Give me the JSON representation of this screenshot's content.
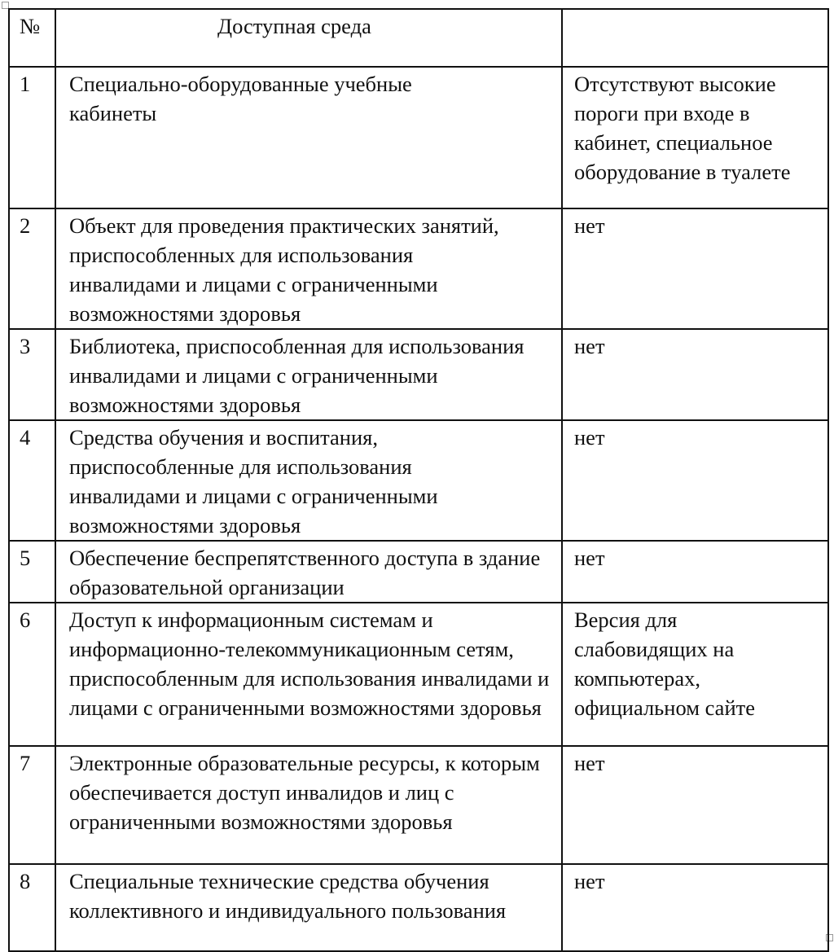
{
  "table": {
    "header": {
      "num": "№",
      "title": "Доступная среда",
      "value": ""
    },
    "rows": [
      {
        "num": "1",
        "description": "Специально-оборудованные учебные кабинеты",
        "value": "Отсутствуют высокие пороги при входе в кабинет, специальное оборудование в туалете"
      },
      {
        "num": "2",
        "description": "Объект для проведения практических занятий, приспособленных для использования инвалидами и лицами с ограниченными возможностями здоровья",
        "value": "нет"
      },
      {
        "num": "3",
        "description": "Библиотека,  приспособленная для использования инвалидами и лицами с ограниченными возможностями здоровья",
        "value": "нет"
      },
      {
        "num": "4",
        "description": "Средства обучения и воспитания, приспособленные для использования инвалидами и лицами с ограниченными возможностями здоровья",
        "value": "нет"
      },
      {
        "num": "5",
        "description": "Обеспечение  беспрепятственного доступа в здание образовательной организации",
        "value": "нет"
      },
      {
        "num": "6",
        "description": "Доступ к информационным системам и информационно-телекоммуникационным сетям, приспособленным для использования инвалидами и лицами с ограниченными возможностями здоровья",
        "value": "Версия для слабовидящих на компьютерах, официальном сайте"
      },
      {
        "num": "7",
        "description": "Электронные образовательные ресурсы, к которым обеспечивается доступ инвалидов и лиц с ограниченными возможностями здоровья",
        "value": "нет"
      },
      {
        "num": "8",
        "description": "Специальные технические средства обучения коллективного и индивидуального пользования",
        "value": "нет"
      }
    ]
  }
}
